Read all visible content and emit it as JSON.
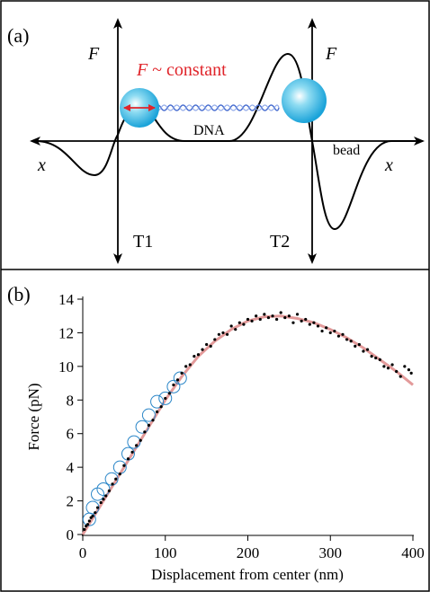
{
  "panel_a": {
    "label": "(a)",
    "force_left": "F",
    "constant_symbol": "F",
    "constant_text": "~ constant",
    "dna": "DNA",
    "bead": "bead",
    "x_left": "x",
    "x_right": "x",
    "trap1": "T1",
    "trap2": "T2",
    "force_right": "F"
  },
  "chart_data": {
    "type": "scatter",
    "panel_label": "(b)",
    "x_label": "Displacement from center (nm)",
    "y_label": "Force (pN)",
    "xlim": [
      0,
      400
    ],
    "ylim": [
      0,
      14
    ],
    "xticks": [
      0,
      100,
      200,
      300,
      400
    ],
    "yticks": [
      0,
      2,
      4,
      6,
      8,
      10,
      12,
      14
    ],
    "series": [
      {
        "type": "line",
        "color": "#e39a9a",
        "x": [
          0,
          20,
          40,
          60,
          80,
          100,
          120,
          140,
          160,
          180,
          200,
          220,
          240,
          260,
          280,
          300,
          320,
          340,
          360,
          380,
          400
        ],
        "values": [
          0,
          1.6,
          3.2,
          4.8,
          6.4,
          8.0,
          9.4,
          10.6,
          11.5,
          12.2,
          12.7,
          12.95,
          13.0,
          12.85,
          12.6,
          12.2,
          11.7,
          11.1,
          10.4,
          9.7,
          8.9
        ]
      },
      {
        "type": "open-circles",
        "color": "#2a86c8",
        "x": [
          8,
          12,
          18,
          25,
          35,
          45,
          55,
          62,
          72,
          80,
          90,
          100,
          110,
          118
        ],
        "values": [
          0.9,
          1.6,
          2.4,
          2.7,
          3.3,
          4.0,
          4.8,
          5.5,
          6.4,
          7.1,
          7.9,
          8.1,
          8.8,
          9.3
        ]
      },
      {
        "type": "dots",
        "color": "#000000",
        "x": [
          2,
          4,
          6,
          8,
          10,
          12,
          15,
          18,
          22,
          25,
          28,
          32,
          36,
          40,
          45,
          50,
          55,
          60,
          65,
          70,
          75,
          80,
          85,
          90,
          95,
          100,
          105,
          110,
          115,
          120,
          125,
          130,
          135,
          140,
          145,
          150,
          155,
          160,
          165,
          170,
          175,
          180,
          185,
          190,
          195,
          200,
          205,
          210,
          215,
          220,
          225,
          230,
          235,
          240,
          245,
          250,
          255,
          260,
          265,
          270,
          275,
          280,
          285,
          290,
          295,
          300,
          305,
          310,
          315,
          320,
          325,
          330,
          335,
          340,
          345,
          350,
          355,
          360,
          365,
          370,
          375,
          380,
          385,
          390,
          395,
          398
        ],
        "values": [
          0.3,
          0.5,
          0.6,
          0.8,
          1.0,
          1.1,
          1.3,
          1.6,
          1.9,
          2.1,
          2.3,
          2.6,
          3.0,
          3.3,
          3.6,
          4.1,
          4.5,
          4.9,
          5.3,
          5.6,
          6.1,
          6.5,
          6.8,
          7.3,
          7.6,
          8.1,
          8.4,
          8.9,
          9.2,
          9.6,
          10.0,
          10.1,
          10.6,
          10.7,
          11.0,
          11.3,
          11.2,
          11.6,
          11.9,
          12.0,
          11.9,
          12.4,
          12.2,
          12.6,
          12.5,
          12.8,
          12.7,
          13.0,
          12.8,
          13.1,
          12.9,
          13.0,
          12.8,
          13.2,
          12.9,
          13.0,
          12.6,
          13.1,
          12.7,
          12.8,
          12.5,
          12.6,
          12.4,
          12.1,
          12.3,
          12.0,
          12.1,
          11.8,
          11.9,
          11.6,
          11.5,
          11.2,
          11.3,
          10.9,
          11.0,
          10.6,
          10.5,
          10.4,
          10.0,
          9.9,
          10.1,
          9.7,
          9.4,
          10.0,
          9.8,
          9.6
        ]
      }
    ]
  }
}
